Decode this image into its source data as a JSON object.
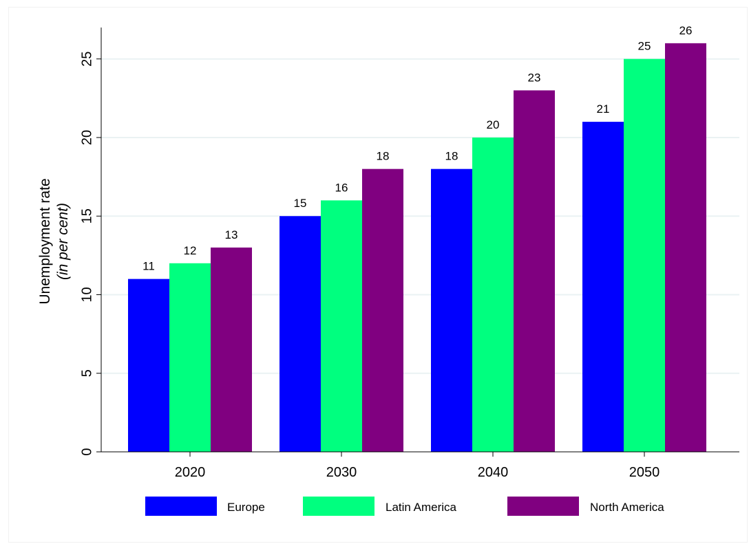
{
  "chart_data": {
    "type": "bar",
    "title": "",
    "xlabel": "",
    "ylabel": "Unemployment rate",
    "ylabel_sub": "(in per cent)",
    "categories": [
      "2020",
      "2030",
      "2040",
      "2050"
    ],
    "series": [
      {
        "name": "Europe",
        "color": "#0000ff",
        "values": [
          11,
          15,
          18,
          21
        ]
      },
      {
        "name": "Latin America",
        "color": "#00ff7f",
        "values": [
          12,
          16,
          20,
          25
        ]
      },
      {
        "name": "North America",
        "color": "#800080",
        "values": [
          13,
          18,
          23,
          26
        ]
      }
    ],
    "ylim": [
      0,
      27
    ],
    "yticks": [
      0,
      5,
      10,
      15,
      20,
      25
    ],
    "grid": true,
    "legend_position": "bottom",
    "data_labels": true
  }
}
